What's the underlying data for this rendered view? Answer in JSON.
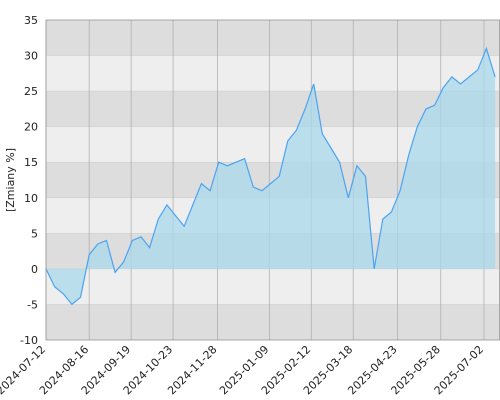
{
  "chart_data": {
    "type": "area",
    "y_label": "[Zmiany %]",
    "x": [
      "2024-07-12",
      "2024-07-19",
      "2024-07-26",
      "2024-08-02",
      "2024-08-09",
      "2024-08-16",
      "2024-08-23",
      "2024-08-30",
      "2024-09-06",
      "2024-09-13",
      "2024-09-20",
      "2024-09-27",
      "2024-10-04",
      "2024-10-11",
      "2024-10-18",
      "2024-10-25",
      "2024-11-01",
      "2024-11-08",
      "2024-11-15",
      "2024-11-22",
      "2024-11-29",
      "2024-12-06",
      "2024-12-13",
      "2024-12-20",
      "2024-12-27",
      "2025-01-03",
      "2025-01-10",
      "2025-01-17",
      "2025-01-24",
      "2025-01-31",
      "2025-02-07",
      "2025-02-14",
      "2025-02-21",
      "2025-02-28",
      "2025-03-07",
      "2025-03-14",
      "2025-03-21",
      "2025-03-28",
      "2025-04-04",
      "2025-04-11",
      "2025-04-18",
      "2025-04-25",
      "2025-05-02",
      "2025-05-09",
      "2025-05-16",
      "2025-05-23",
      "2025-05-30",
      "2025-06-06",
      "2025-06-13",
      "2025-06-20",
      "2025-06-27",
      "2025-07-04",
      "2025-07-11"
    ],
    "values": [
      0,
      -2.5,
      -3.5,
      -5,
      -4,
      2,
      3.5,
      4,
      -0.5,
      1,
      4,
      4.5,
      3,
      7,
      9,
      7.5,
      6,
      9,
      12,
      11,
      15,
      14.5,
      15,
      15.5,
      11.5,
      11,
      12,
      13,
      18,
      19.5,
      22.5,
      26,
      19,
      17,
      15,
      10,
      14.5,
      13,
      0,
      7,
      8,
      11,
      16,
      20,
      22.5,
      23,
      25.5,
      27,
      26,
      27,
      28,
      31,
      27
    ],
    "color": "#4da3f0",
    "fill": "#a8d8ea",
    "xlim": [
      "2024-07-12",
      "2025-07-15"
    ],
    "xticks": [
      "2024-07-12",
      "2024-08-16",
      "2024-09-19",
      "2024-10-23",
      "2024-11-28",
      "2025-01-09",
      "2025-02-12",
      "2025-03-18",
      "2025-04-23",
      "2025-05-28",
      "2025-07-02"
    ],
    "ylim": [
      -10,
      35
    ],
    "yticks": [
      -10,
      -5,
      0,
      5,
      10,
      15,
      20,
      25,
      30,
      35
    ],
    "band_colors": [
      "#dddddd",
      "#eeeeee"
    ],
    "grid": true
  }
}
